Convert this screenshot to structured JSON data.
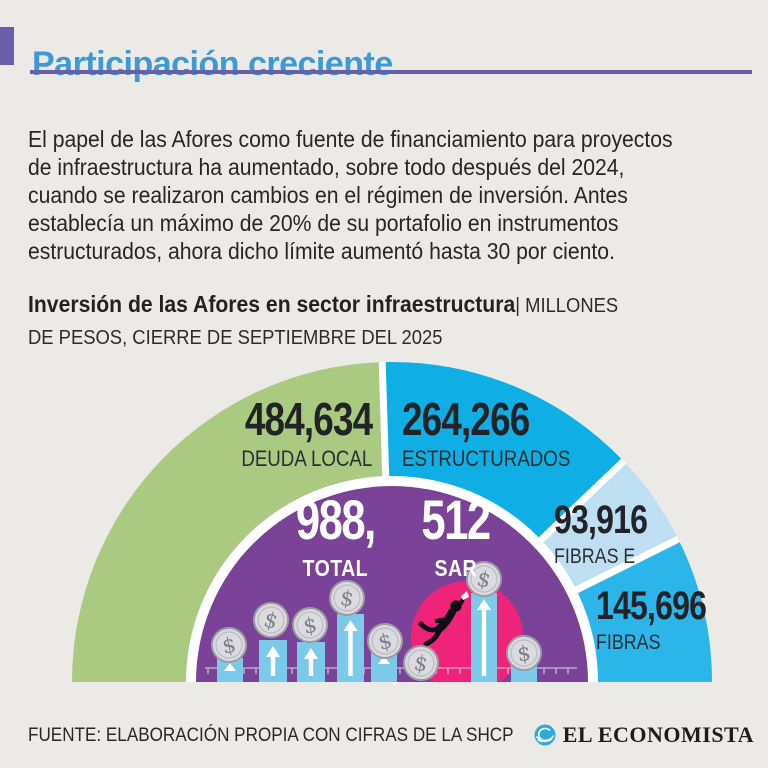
{
  "header": {
    "title": "Participación creciente",
    "title_color": "#3D9AD6",
    "accent_color": "#6A5EA8"
  },
  "intro": {
    "text": "El papel de las Afores como fuente de financiamiento para proyectos\nde infraestructura ha aumentado, sobre todo después del 2024,\ncuando se realizaron cambios en el régimen de inversión. Antes\nestablecía un máximo de 20% de su portafolio en instrumentos\nestructurados, ahora dicho límite aumentó hasta 30 por ciento."
  },
  "subtitle": {
    "bold": "Inversión de las Afores en sector infraestructura",
    "units": "| MILLONES\nDE PESOS, CIERRE DE SEPTIEMBRE DEL 2025"
  },
  "chart_data": {
    "type": "pie",
    "variant": "semicircle",
    "title": "Inversión de las Afores en sector infraestructura",
    "units_label": "Millones de pesos, cierre de septiembre del 2025",
    "legend_position": "on-segments",
    "segments": [
      {
        "label": "DEUDA LOCAL",
        "value": "484,634",
        "numeric": 484634,
        "color": "#AACA81"
      },
      {
        "label": "ESTRUCTURADOS",
        "value": "264,266",
        "numeric": 264266,
        "color": "#0FAFE6"
      },
      {
        "label": "FIBRAS E",
        "value": "93,916",
        "numeric": 93916,
        "color": "#BDDFF1"
      },
      {
        "label": "FIBRAS",
        "value": "145,696",
        "numeric": 145696,
        "color": "#2BB5E9"
      }
    ],
    "center": {
      "value_left": "988,",
      "value_right": "512",
      "label_left": "TOTAL",
      "label_right": "SAR",
      "numeric_total": 988512,
      "color": "#7B4398",
      "accent": "#F0237B"
    },
    "illustration": {
      "coin_symbol": "$"
    }
  },
  "footer": {
    "source": "FUENTE: ELABORACIÓN PROPIA CON CIFRAS DE LA SHCP",
    "brand": "EL ECONOMISTA",
    "brand_icon_color": "#2FA9DC"
  }
}
